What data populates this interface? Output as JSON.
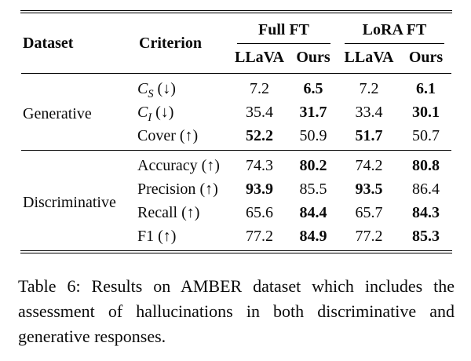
{
  "colors": {
    "background": "#ffffff",
    "text": "#0a0a0a",
    "rule": "#000000"
  },
  "table": {
    "header": {
      "dataset": "Dataset",
      "criterion": "Criterion",
      "groups": [
        {
          "label": "Full FT",
          "cols": [
            "LLaVA",
            "Ours"
          ]
        },
        {
          "label": "LoRA FT",
          "cols": [
            "LLaVA",
            "Ours"
          ]
        }
      ]
    },
    "sections": [
      {
        "dataset": "Generative",
        "rows": [
          {
            "criterion": {
              "math": "C",
              "sub": "S",
              "post": " (↓)"
            },
            "values": [
              {
                "v": "7.2",
                "w": "normal"
              },
              {
                "v": "6.5",
                "w": "bold"
              },
              {
                "v": "7.2",
                "w": "normal"
              },
              {
                "v": "6.1",
                "w": "bold"
              }
            ]
          },
          {
            "criterion": {
              "math": "C",
              "sub": "I",
              "post": " (↓)"
            },
            "values": [
              {
                "v": "35.4",
                "w": "normal"
              },
              {
                "v": "31.7",
                "w": "bold"
              },
              {
                "v": "33.4",
                "w": "normal"
              },
              {
                "v": "30.1",
                "w": "bold"
              }
            ]
          },
          {
            "criterion": {
              "pre": "Cover",
              "post": " (↑)"
            },
            "values": [
              {
                "v": "52.2",
                "w": "bold"
              },
              {
                "v": "50.9",
                "w": "normal"
              },
              {
                "v": "51.7",
                "w": "bold"
              },
              {
                "v": "50.7",
                "w": "normal"
              }
            ]
          }
        ]
      },
      {
        "dataset": "Discriminative",
        "rows": [
          {
            "criterion": {
              "pre": "Accuracy",
              "post": " (↑)"
            },
            "values": [
              {
                "v": "74.3",
                "w": "normal"
              },
              {
                "v": "80.2",
                "w": "bold"
              },
              {
                "v": "74.2",
                "w": "normal"
              },
              {
                "v": "80.8",
                "w": "bold"
              }
            ]
          },
          {
            "criterion": {
              "pre": "Precision",
              "post": " (↑)"
            },
            "values": [
              {
                "v": "93.9",
                "w": "bold"
              },
              {
                "v": "85.5",
                "w": "normal"
              },
              {
                "v": "93.5",
                "w": "bold"
              },
              {
                "v": "86.4",
                "w": "normal"
              }
            ]
          },
          {
            "criterion": {
              "pre": "Recall",
              "post": " (↑)"
            },
            "values": [
              {
                "v": "65.6",
                "w": "normal"
              },
              {
                "v": "84.4",
                "w": "bold"
              },
              {
                "v": "65.7",
                "w": "normal"
              },
              {
                "v": "84.3",
                "w": "bold"
              }
            ]
          },
          {
            "criterion": {
              "pre": "F1",
              "post": " (↑)"
            },
            "values": [
              {
                "v": "77.2",
                "w": "normal"
              },
              {
                "v": "84.9",
                "w": "bold"
              },
              {
                "v": "77.2",
                "w": "normal"
              },
              {
                "v": "85.3",
                "w": "bold"
              }
            ]
          }
        ]
      }
    ]
  },
  "caption": {
    "text": "Table 6: Results on AMBER dataset which includes the assessment of hallucinations in both discriminative and generative responses."
  }
}
